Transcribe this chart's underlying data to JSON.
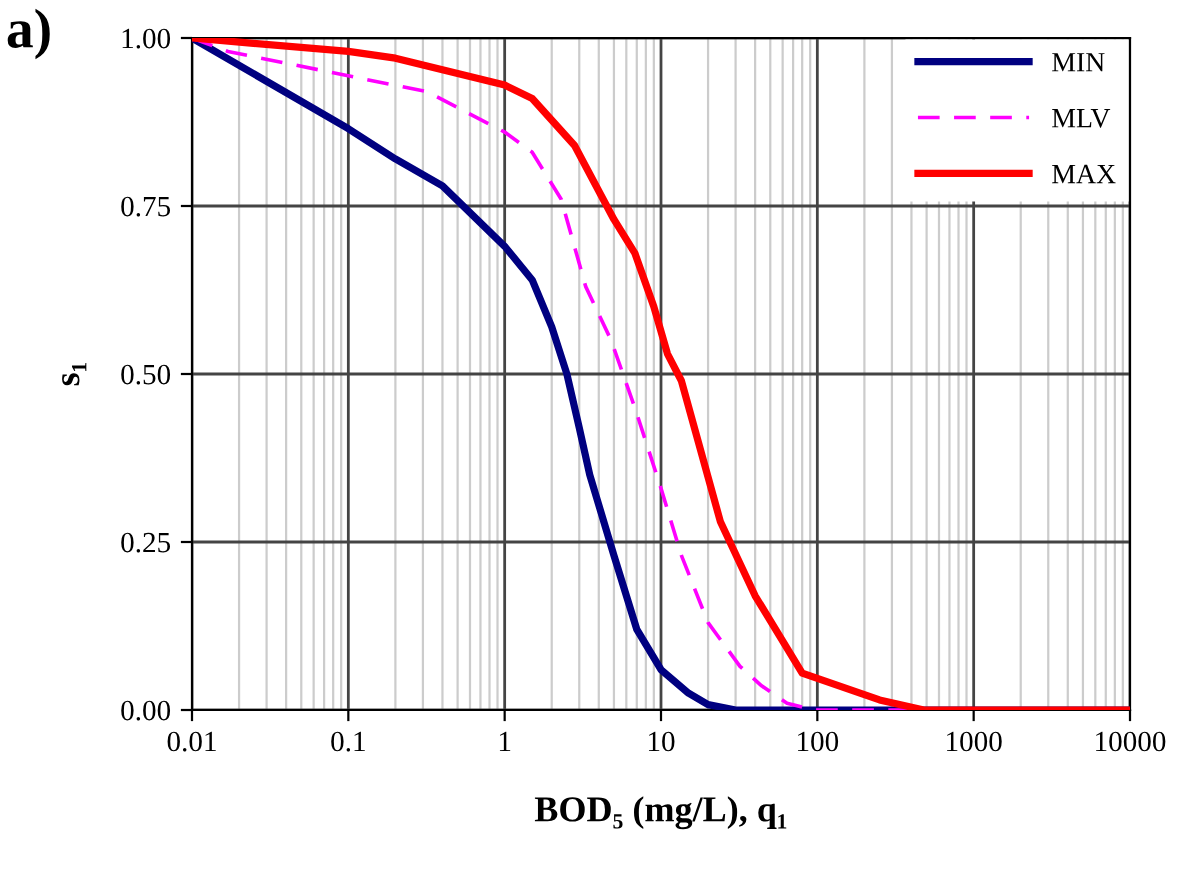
{
  "chart_data": {
    "type": "line",
    "xlabel": "BOD₅ (mg/L), q₁",
    "ylabel": "s₁",
    "annotations": [
      "a)"
    ],
    "log": "x",
    "grid": true,
    "legend": "top right",
    "xlim": [
      0.01,
      10000
    ],
    "xticks": [
      0.01,
      0.1,
      1,
      10,
      100,
      1000,
      10000
    ],
    "ylim": [
      0,
      1
    ],
    "yticks": [
      {
        "value": 0,
        "label": "0.00"
      },
      {
        "value": 0.25,
        "label": "0.25"
      },
      {
        "value": 0.5,
        "label": "0.50"
      },
      {
        "value": 0.75,
        "label": "0.75"
      },
      {
        "value": 1,
        "label": "1.00"
      }
    ],
    "series": [
      {
        "name": "MIN",
        "color": "#000080",
        "line_style": "solid",
        "x": [
          0.01,
          0.1,
          0.2,
          0.4,
          1,
          1.5,
          2,
          2.5,
          3,
          3.5,
          5,
          7,
          10,
          15,
          20,
          30,
          10000
        ],
        "values": [
          1.0,
          0.865,
          0.82,
          0.78,
          0.69,
          0.64,
          0.57,
          0.5,
          0.42,
          0.35,
          0.23,
          0.12,
          0.06,
          0.025,
          0.008,
          0,
          0
        ]
      },
      {
        "name": "MLV",
        "color": "#ff00ff",
        "line_style": "dashed",
        "x": [
          0.01,
          0.017,
          0.12,
          0.32,
          1,
          1.5,
          2.3,
          3.3,
          4.8,
          6.8,
          10,
          13.5,
          20,
          32,
          44,
          64,
          95,
          10000
        ],
        "values": [
          1.0,
          0.98,
          0.94,
          0.92,
          0.86,
          0.83,
          0.76,
          0.63,
          0.55,
          0.45,
          0.33,
          0.23,
          0.13,
          0.065,
          0.036,
          0.01,
          0,
          0
        ]
      },
      {
        "name": "MAX",
        "color": "#ff0000",
        "line_style": "solid",
        "x": [
          0.01,
          0.1,
          0.2,
          1,
          1.5,
          2.8,
          5,
          6.8,
          9,
          11,
          13.5,
          24,
          40,
          80,
          250,
          480,
          10000
        ],
        "values": [
          1.0,
          0.98,
          0.97,
          0.93,
          0.91,
          0.84,
          0.73,
          0.68,
          0.6,
          0.53,
          0.49,
          0.28,
          0.17,
          0.055,
          0.015,
          0,
          0
        ]
      }
    ]
  }
}
